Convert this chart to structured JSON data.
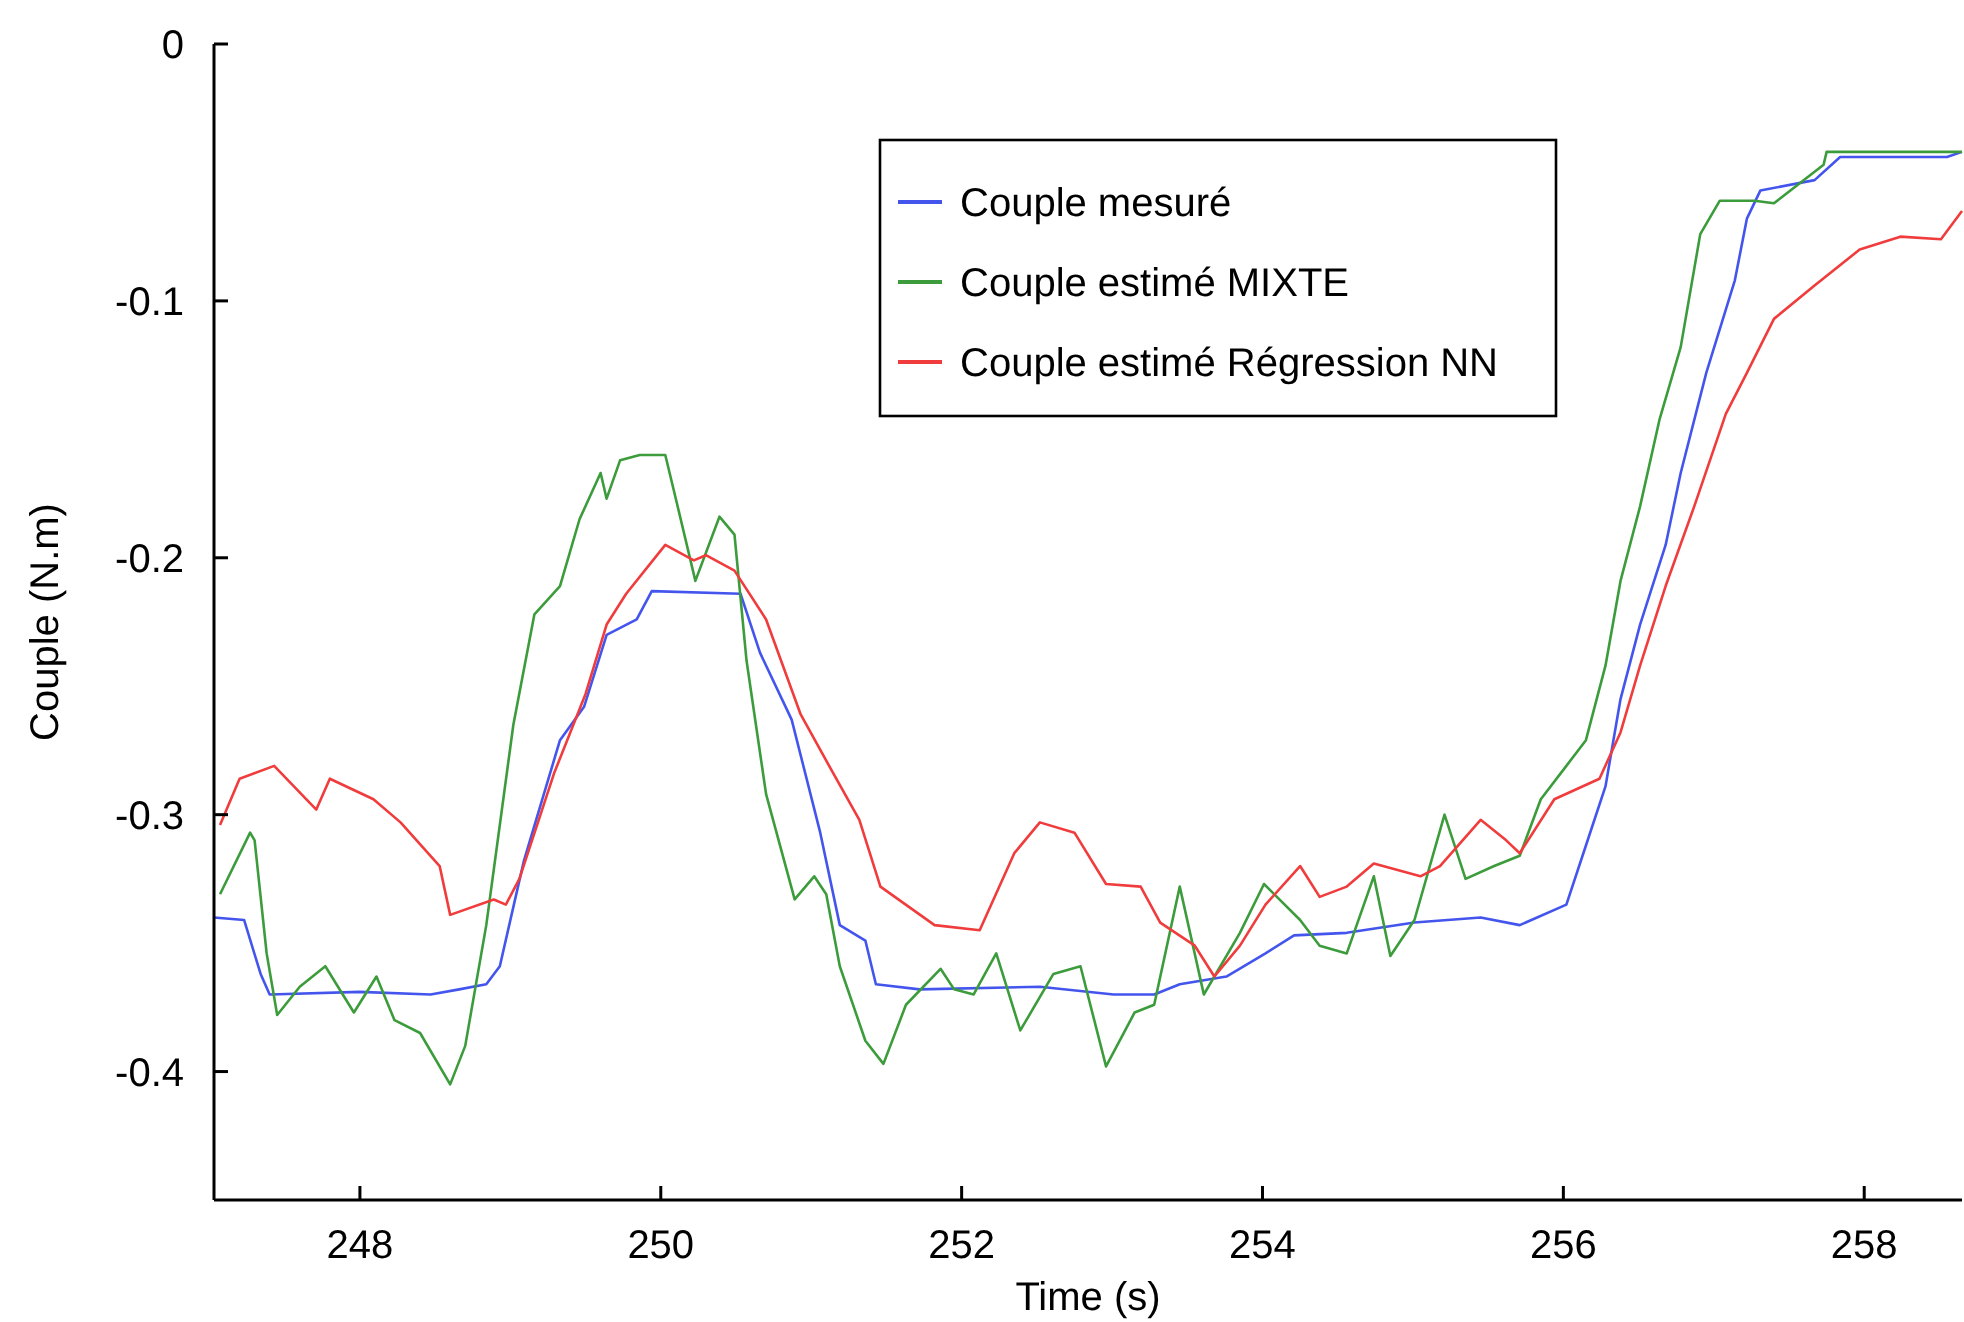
{
  "chart_data": {
    "type": "line",
    "xlabel": "Time (s)",
    "ylabel": "Couple (N.m)",
    "xlim": [
      247.03,
      258.65
    ],
    "ylim": [
      -0.45,
      0
    ],
    "xticks": [
      248,
      250,
      252,
      254,
      256,
      258
    ],
    "yticks": [
      {
        "value": 0,
        "label": "0"
      },
      {
        "value": -0.1,
        "label": "-0.1"
      },
      {
        "value": -0.2,
        "label": "-0.2"
      },
      {
        "value": -0.3,
        "label": "-0.3"
      },
      {
        "value": -0.4,
        "label": "-0.4"
      }
    ],
    "grid": false,
    "legend": "top right",
    "marker": "none",
    "line_style": "solid",
    "series": [
      {
        "name": "Couple mesuré",
        "color": "#4455ee",
        "x": [
          247.03,
          247.23,
          247.34,
          247.4,
          248.0,
          248.47,
          248.66,
          248.84,
          248.93,
          249.09,
          249.33,
          249.49,
          249.64,
          249.84,
          249.94,
          250.53,
          250.66,
          250.87,
          251.06,
          251.19,
          251.36,
          251.43,
          251.72,
          252.52,
          253.01,
          253.28,
          253.45,
          253.76,
          254.02,
          254.21,
          254.56,
          255.01,
          255.45,
          255.71,
          256.02,
          256.15,
          256.28,
          256.38,
          256.51,
          256.68,
          256.78,
          256.95,
          257.14,
          257.22,
          257.31,
          257.67,
          257.84,
          258.55,
          258.65
        ],
        "values": [
          -0.34,
          -0.341,
          -0.362,
          -0.37,
          -0.369,
          -0.37,
          -0.368,
          -0.366,
          -0.359,
          -0.318,
          -0.271,
          -0.258,
          -0.23,
          -0.224,
          -0.213,
          -0.214,
          -0.237,
          -0.263,
          -0.307,
          -0.343,
          -0.349,
          -0.366,
          -0.368,
          -0.367,
          -0.37,
          -0.37,
          -0.366,
          -0.363,
          -0.354,
          -0.347,
          -0.346,
          -0.342,
          -0.34,
          -0.343,
          -0.335,
          -0.312,
          -0.289,
          -0.255,
          -0.226,
          -0.195,
          -0.167,
          -0.128,
          -0.092,
          -0.068,
          -0.057,
          -0.053,
          -0.044,
          -0.044,
          -0.042
        ]
      },
      {
        "name": "Couple estimé MIXTE",
        "color": "#3c9c3c",
        "x": [
          247.07,
          247.27,
          247.3,
          247.38,
          247.45,
          247.6,
          247.77,
          247.96,
          248.11,
          248.23,
          248.4,
          248.6,
          248.7,
          248.84,
          249.02,
          249.16,
          249.33,
          249.46,
          249.6,
          249.64,
          249.73,
          249.86,
          250.03,
          250.1,
          250.23,
          250.39,
          250.49,
          250.57,
          250.7,
          250.89,
          251.02,
          251.1,
          251.19,
          251.36,
          251.48,
          251.63,
          251.86,
          251.95,
          252.08,
          252.23,
          252.39,
          252.61,
          252.79,
          252.96,
          253.15,
          253.28,
          253.45,
          253.61,
          253.85,
          254.01,
          254.25,
          254.38,
          254.56,
          254.74,
          254.85,
          255.01,
          255.21,
          255.35,
          255.54,
          255.71,
          255.85,
          256.02,
          256.15,
          256.28,
          256.38,
          256.51,
          256.64,
          256.78,
          256.91,
          257.04,
          257.27,
          257.4,
          257.73,
          257.75,
          258.65
        ],
        "values": [
          -0.331,
          -0.307,
          -0.31,
          -0.354,
          -0.378,
          -0.367,
          -0.359,
          -0.377,
          -0.363,
          -0.38,
          -0.385,
          -0.405,
          -0.39,
          -0.343,
          -0.265,
          -0.222,
          -0.211,
          -0.185,
          -0.167,
          -0.177,
          -0.162,
          -0.16,
          -0.16,
          -0.177,
          -0.209,
          -0.184,
          -0.191,
          -0.24,
          -0.292,
          -0.333,
          -0.324,
          -0.331,
          -0.359,
          -0.388,
          -0.397,
          -0.374,
          -0.36,
          -0.368,
          -0.37,
          -0.354,
          -0.384,
          -0.362,
          -0.359,
          -0.398,
          -0.377,
          -0.374,
          -0.328,
          -0.37,
          -0.346,
          -0.327,
          -0.341,
          -0.351,
          -0.354,
          -0.324,
          -0.355,
          -0.341,
          -0.3,
          -0.325,
          -0.32,
          -0.316,
          -0.294,
          -0.281,
          -0.271,
          -0.242,
          -0.209,
          -0.18,
          -0.146,
          -0.118,
          -0.074,
          -0.061,
          -0.061,
          -0.062,
          -0.047,
          -0.042,
          -0.042
        ]
      },
      {
        "name": "Couple estimé Régression NN",
        "color": "#f03c3c",
        "x": [
          247.07,
          247.2,
          247.43,
          247.71,
          247.8,
          248.09,
          248.27,
          248.53,
          248.6,
          248.89,
          248.97,
          249.06,
          249.29,
          249.5,
          249.64,
          249.77,
          250.03,
          250.22,
          250.3,
          250.49,
          250.7,
          250.93,
          251.1,
          251.32,
          251.46,
          251.82,
          252.12,
          252.35,
          252.52,
          252.75,
          252.96,
          253.19,
          253.32,
          253.55,
          253.68,
          253.85,
          254.02,
          254.25,
          254.38,
          254.56,
          254.74,
          255.05,
          255.18,
          255.45,
          255.62,
          255.71,
          255.94,
          256.24,
          256.38,
          256.51,
          256.68,
          256.87,
          257.08,
          257.22,
          257.4,
          257.67,
          257.97,
          258.24,
          258.51,
          258.65
        ],
        "values": [
          -0.304,
          -0.286,
          -0.281,
          -0.298,
          -0.286,
          -0.294,
          -0.303,
          -0.32,
          -0.339,
          -0.333,
          -0.335,
          -0.325,
          -0.284,
          -0.253,
          -0.226,
          -0.214,
          -0.195,
          -0.201,
          -0.199,
          -0.205,
          -0.224,
          -0.261,
          -0.279,
          -0.302,
          -0.328,
          -0.343,
          -0.345,
          -0.315,
          -0.303,
          -0.307,
          -0.327,
          -0.328,
          -0.342,
          -0.351,
          -0.363,
          -0.351,
          -0.335,
          -0.32,
          -0.332,
          -0.328,
          -0.319,
          -0.324,
          -0.32,
          -0.302,
          -0.31,
          -0.315,
          -0.294,
          -0.286,
          -0.268,
          -0.242,
          -0.211,
          -0.18,
          -0.144,
          -0.128,
          -0.107,
          -0.094,
          -0.08,
          -0.075,
          -0.076,
          -0.065
        ]
      }
    ]
  }
}
